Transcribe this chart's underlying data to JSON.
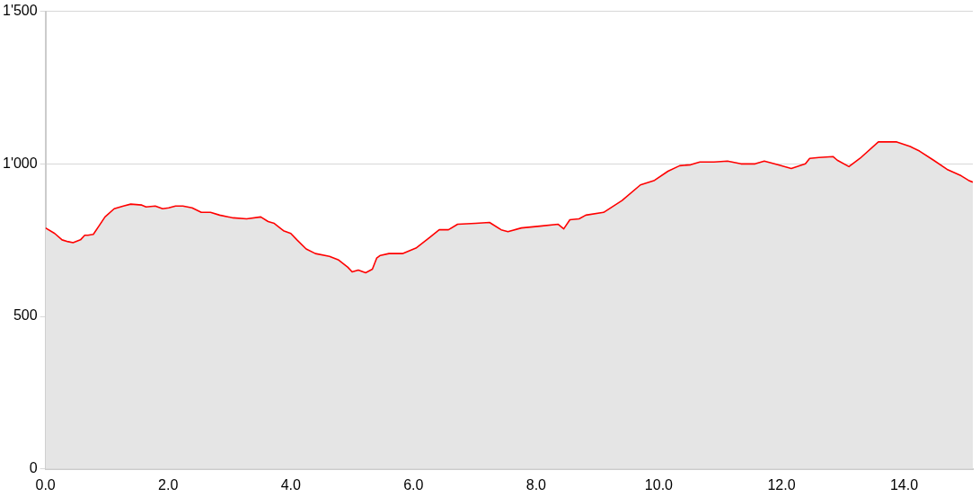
{
  "chart_data": {
    "type": "area",
    "x": [
      0,
      0.15,
      0.27,
      0.37,
      0.45,
      0.57,
      0.64,
      0.69,
      0.78,
      0.87,
      0.97,
      1.12,
      1.27,
      1.39,
      1.57,
      1.64,
      1.79,
      1.91,
      2.01,
      2.12,
      2.24,
      2.39,
      2.54,
      2.69,
      2.84,
      3.06,
      3.28,
      3.51,
      3.63,
      3.73,
      3.88,
      4.0,
      4.1,
      4.25,
      4.4,
      4.63,
      4.78,
      4.93,
      5.0,
      5.1,
      5.22,
      5.33,
      5.4,
      5.46,
      5.6,
      5.82,
      6.04,
      6.27,
      6.42,
      6.57,
      6.72,
      7.01,
      7.24,
      7.43,
      7.54,
      7.76,
      8.06,
      8.36,
      8.45,
      8.55,
      8.7,
      8.81,
      9.1,
      9.4,
      9.7,
      9.93,
      10.15,
      10.34,
      10.52,
      10.67,
      10.9,
      11.12,
      11.34,
      11.57,
      11.72,
      11.94,
      12.16,
      12.39,
      12.46,
      12.61,
      12.84,
      12.91,
      13.1,
      13.28,
      13.58,
      13.88,
      14.1,
      14.25,
      14.48,
      14.7,
      14.93,
      15.05,
      15.12
    ],
    "series": [
      {
        "color": "#ff0000",
        "values": [
          790,
          772,
          751,
          745,
          742,
          751,
          766,
          766,
          769,
          796,
          826,
          853,
          862,
          868,
          865,
          859,
          862,
          853,
          856,
          862,
          862,
          856,
          841,
          841,
          832,
          823,
          820,
          826,
          811,
          805,
          781,
          772,
          751,
          721,
          706,
          697,
          685,
          661,
          646,
          652,
          643,
          655,
          691,
          700,
          706,
          706,
          724,
          760,
          784,
          784,
          802,
          805,
          808,
          784,
          778,
          790,
          796,
          802,
          787,
          817,
          820,
          832,
          841,
          880,
          931,
          946,
          976,
          994,
          997,
          1006,
          1006,
          1009,
          1000,
          1000,
          1009,
          997,
          985,
          1000,
          1018,
          1021,
          1024,
          1012,
          991,
          1018,
          1072,
          1072,
          1057,
          1042,
          1012,
          982,
          961,
          946,
          940
        ]
      }
    ],
    "xlim": [
      0,
      15.12
    ],
    "xticks": [
      {
        "value": 0,
        "label": "0.0"
      },
      {
        "value": 2,
        "label": "2.0"
      },
      {
        "value": 4,
        "label": "4.0"
      },
      {
        "value": 6,
        "label": "6.0"
      },
      {
        "value": 8,
        "label": "8.0"
      },
      {
        "value": 10,
        "label": "10.0"
      },
      {
        "value": 12,
        "label": "12.0"
      },
      {
        "value": 14,
        "label": "14.0"
      }
    ],
    "ylim": [
      0,
      1500
    ],
    "yticks": [
      0,
      500,
      {
        "value": 1000,
        "label": "1'000"
      },
      {
        "value": 1500,
        "label": "1'500"
      }
    ],
    "grid": "y",
    "legend": false,
    "marker": "none"
  }
}
